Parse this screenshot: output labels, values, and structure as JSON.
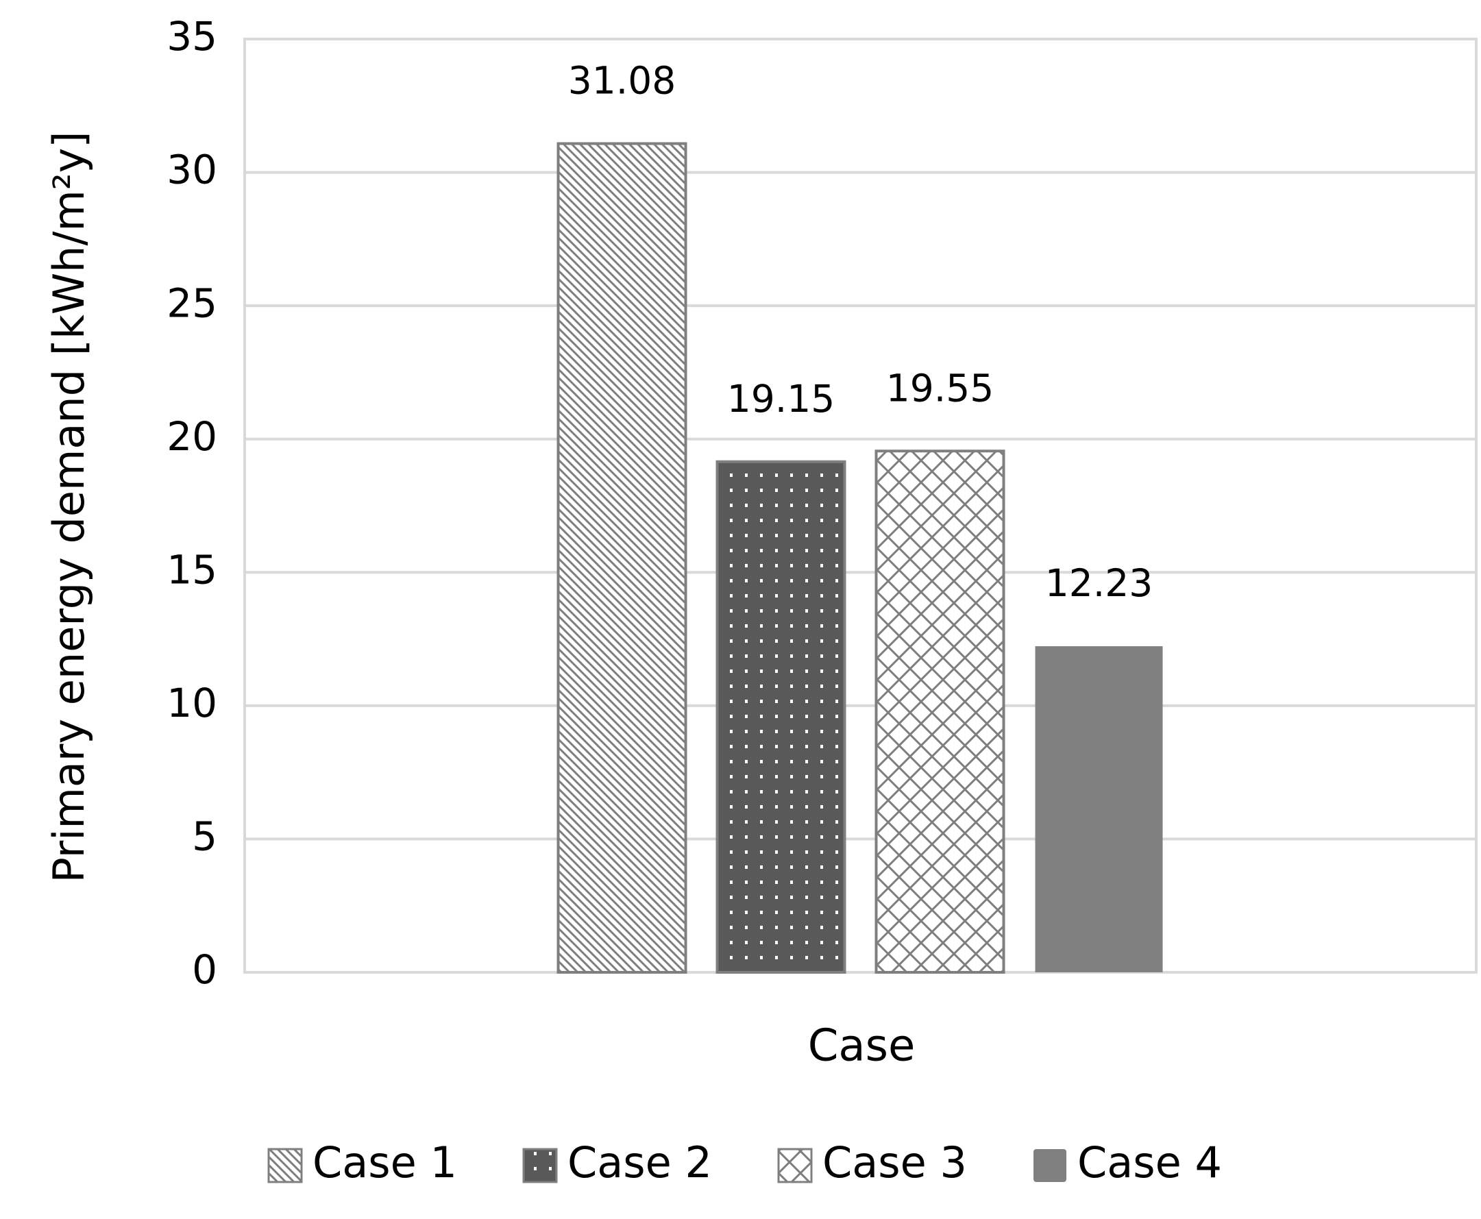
{
  "chart_data": {
    "type": "bar",
    "x_label": "Case",
    "y_label": "Primary energy demand [kWh/m²y]",
    "categories": [
      null
    ],
    "series": [
      {
        "name": "Case 1",
        "color": "#7f7f7f",
        "pattern": "diagonal",
        "values": [
          31.08
        ]
      },
      {
        "name": "Case 2",
        "color": "#595959",
        "pattern": "dots",
        "values": [
          19.15
        ]
      },
      {
        "name": "Case 3",
        "color": "#7f7f7f",
        "pattern": "crosshatch",
        "values": [
          19.55
        ]
      },
      {
        "name": "Case 4",
        "color": "#808080",
        "pattern": "solid",
        "values": [
          12.23
        ]
      }
    ],
    "ylim": [
      0,
      35
    ],
    "yticks": [
      0,
      5,
      10,
      15,
      20,
      25,
      30,
      35
    ],
    "grid": true,
    "legend": "bottom",
    "data_labels": true
  }
}
